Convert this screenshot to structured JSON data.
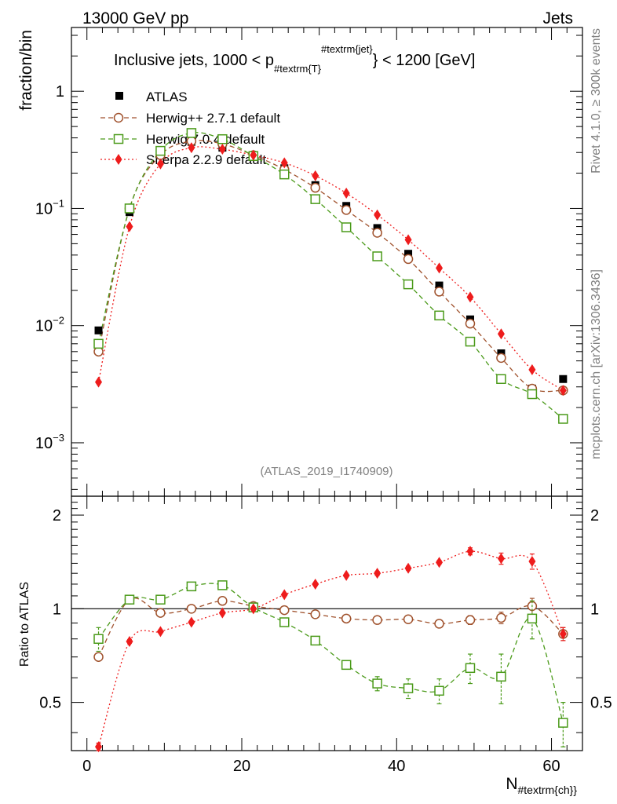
{
  "chart_data": {
    "type": "line",
    "header": {
      "left": "13000 GeV pp",
      "right": "Jets"
    },
    "title_parts": {
      "pre": "Inclusive jets, 1000 < p",
      "sub": "#textrm{T}",
      "sup": "#textrm{jet}",
      "post": "} < 1200 [GeV]"
    },
    "analysis_id": "(ATLAS_2019_I1740909)",
    "side_text": {
      "rivet": "Rivet 4.1.0, ≥ 300k events",
      "mcplots": "mcplots.cern.ch [arXiv:1306.3436]"
    },
    "xlabel": {
      "main": "N",
      "sub": "#textrm{ch}}"
    },
    "ylabel": "fraction/bin",
    "ratio_ylabel": "Ratio to ATLAS",
    "xlim": [
      -2,
      64
    ],
    "ylim_log": [
      0.00035,
      3.5
    ],
    "ratio_ylim": [
      0.35,
      2.3
    ],
    "x_ticks": [
      "0",
      "20",
      "40",
      "60"
    ],
    "y_ticks": [
      {
        "value": 1,
        "label": "1",
        "exp": ""
      },
      {
        "value": 0.1,
        "label": "10",
        "exp": "−1"
      },
      {
        "value": 0.01,
        "label": "10",
        "exp": "−2"
      },
      {
        "value": 0.001,
        "label": "10",
        "exp": "−3"
      }
    ],
    "ratio_ticks": [
      "0.5",
      "1",
      "2"
    ],
    "x": [
      1.5,
      5.5,
      9.5,
      13.5,
      17.5,
      21.5,
      25.5,
      29.5,
      33.5,
      37.5,
      41.5,
      45.5,
      49.5,
      53.5,
      57.5,
      61.5
    ],
    "data": {
      "name": "ATLAS",
      "color": "#000000",
      "values": [
        0.0091,
        0.093,
        0.29,
        0.37,
        0.33,
        0.28,
        0.22,
        0.158,
        0.105,
        0.068,
        0.041,
        0.022,
        0.0113,
        0.0058,
        0.0029,
        0.0035
      ]
    },
    "series": [
      {
        "name": "Herwig++ 2.7.1 default",
        "color": "#a0522d",
        "marker": "circle",
        "dash": "6,4",
        "values": [
          0.006,
          0.1,
          0.285,
          0.375,
          0.355,
          0.285,
          0.215,
          0.15,
          0.097,
          0.062,
          0.037,
          0.0195,
          0.0104,
          0.0053,
          0.0029,
          0.0028
        ],
        "ratio": [
          0.7,
          1.07,
          0.97,
          1.0,
          1.06,
          1.02,
          0.99,
          0.96,
          0.93,
          0.92,
          0.925,
          0.895,
          0.92,
          0.935,
          1.02,
          0.83
        ],
        "ratio_err": [
          0.02,
          0.02,
          0.01,
          0.01,
          0.01,
          0.01,
          0.01,
          0.01,
          0.01,
          0.01,
          0.015,
          0.02,
          0.03,
          0.04,
          0.06,
          0.04
        ]
      },
      {
        "name": "Herwig 7.0.4 default",
        "color": "#4a9a19",
        "marker": "square",
        "dash": "6,4",
        "values": [
          0.007,
          0.1,
          0.31,
          0.44,
          0.39,
          0.28,
          0.195,
          0.12,
          0.069,
          0.039,
          0.0225,
          0.0122,
          0.0073,
          0.0035,
          0.0026,
          0.0016
        ],
        "ratio": [
          0.8,
          1.07,
          1.07,
          1.18,
          1.19,
          1.01,
          0.905,
          0.79,
          0.66,
          0.575,
          0.555,
          0.545,
          0.645,
          0.605,
          0.93,
          0.43
        ],
        "ratio_err": [
          0.07,
          0.02,
          0.015,
          0.015,
          0.015,
          0.015,
          0.015,
          0.015,
          0.02,
          0.03,
          0.04,
          0.05,
          0.07,
          0.11,
          0.13,
          0.07
        ]
      },
      {
        "name": "Sherpa 2.2.9 default",
        "color": "#ee1c1c",
        "marker": "diamond",
        "dash": "2,3",
        "values": [
          0.0033,
          0.07,
          0.24,
          0.33,
          0.32,
          0.285,
          0.245,
          0.19,
          0.135,
          0.088,
          0.054,
          0.031,
          0.0175,
          0.0085,
          0.0042,
          0.0028
        ],
        "ratio": [
          0.36,
          0.785,
          0.845,
          0.905,
          0.97,
          1.0,
          1.11,
          1.2,
          1.28,
          1.3,
          1.35,
          1.41,
          1.53,
          1.45,
          1.42,
          0.83
        ],
        "ratio_err": [
          0.01,
          0.01,
          0.01,
          0.01,
          0.01,
          0.01,
          0.01,
          0.01,
          0.01,
          0.02,
          0.02,
          0.02,
          0.04,
          0.06,
          0.08,
          0.04
        ]
      }
    ]
  }
}
